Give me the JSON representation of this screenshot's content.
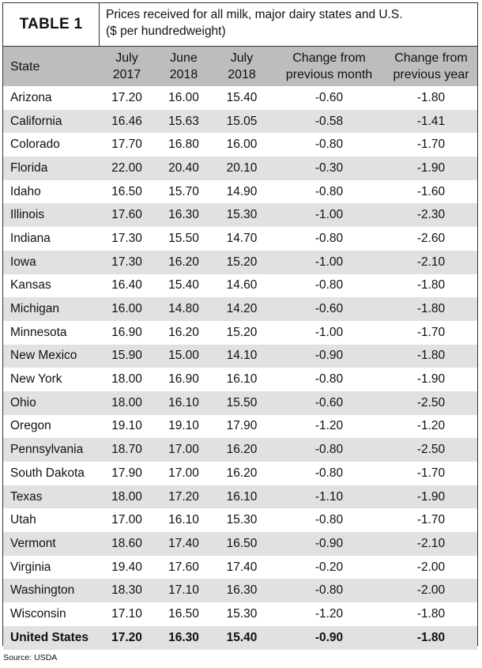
{
  "table_label": "TABLE 1",
  "title_line1": "Prices received for all milk, major dairy states and U.S.",
  "title_line2": "($ per hundredweight)",
  "columns": [
    {
      "line1": "State",
      "line2": ""
    },
    {
      "line1": "July",
      "line2": "2017"
    },
    {
      "line1": "June",
      "line2": "2018"
    },
    {
      "line1": "July",
      "line2": "2018"
    },
    {
      "line1": "Change from",
      "line2": "previous month"
    },
    {
      "line1": "Change from",
      "line2": "previous year"
    }
  ],
  "rows": [
    [
      "Arizona",
      "17.20",
      "16.00",
      "15.40",
      "-0.60",
      "-1.80"
    ],
    [
      "California",
      "16.46",
      "15.63",
      "15.05",
      "-0.58",
      "-1.41"
    ],
    [
      "Colorado",
      "17.70",
      "16.80",
      "16.00",
      "-0.80",
      "-1.70"
    ],
    [
      "Florida",
      "22.00",
      "20.40",
      "20.10",
      "-0.30",
      "-1.90"
    ],
    [
      "Idaho",
      "16.50",
      "15.70",
      "14.90",
      "-0.80",
      "-1.60"
    ],
    [
      "Illinois",
      "17.60",
      "16.30",
      "15.30",
      "-1.00",
      "-2.30"
    ],
    [
      "Indiana",
      "17.30",
      "15.50",
      "14.70",
      "-0.80",
      "-2.60"
    ],
    [
      "Iowa",
      "17.30",
      "16.20",
      "15.20",
      "-1.00",
      "-2.10"
    ],
    [
      "Kansas",
      "16.40",
      "15.40",
      "14.60",
      "-0.80",
      "-1.80"
    ],
    [
      "Michigan",
      "16.00",
      "14.80",
      "14.20",
      "-0.60",
      "-1.80"
    ],
    [
      "Minnesota",
      "16.90",
      "16.20",
      "15.20",
      "-1.00",
      "-1.70"
    ],
    [
      "New Mexico",
      "15.90",
      "15.00",
      "14.10",
      "-0.90",
      "-1.80"
    ],
    [
      "New York",
      "18.00",
      "16.90",
      "16.10",
      "-0.80",
      "-1.90"
    ],
    [
      "Ohio",
      "18.00",
      "16.10",
      "15.50",
      "-0.60",
      "-2.50"
    ],
    [
      "Oregon",
      "19.10",
      "19.10",
      "17.90",
      "-1.20",
      "-1.20"
    ],
    [
      "Pennsylvania",
      "18.70",
      "17.00",
      "16.20",
      "-0.80",
      "-2.50"
    ],
    [
      "South Dakota",
      "17.90",
      "17.00",
      "16.20",
      "-0.80",
      "-1.70"
    ],
    [
      "Texas",
      "18.00",
      "17.20",
      "16.10",
      "-1.10",
      "-1.90"
    ],
    [
      "Utah",
      "17.00",
      "16.10",
      "15.30",
      "-0.80",
      "-1.70"
    ],
    [
      "Vermont",
      "18.60",
      "17.40",
      "16.50",
      "-0.90",
      "-2.10"
    ],
    [
      "Virginia",
      "19.40",
      "17.60",
      "17.40",
      "-0.20",
      "-2.00"
    ],
    [
      "Washington",
      "18.30",
      "17.10",
      "16.30",
      "-0.80",
      "-2.00"
    ],
    [
      "Wisconsin",
      "17.10",
      "16.50",
      "15.30",
      "-1.20",
      "-1.80"
    ],
    [
      "United States",
      "17.20",
      "16.30",
      "15.40",
      "-0.90",
      "-1.80"
    ]
  ],
  "source": "Source: USDA"
}
